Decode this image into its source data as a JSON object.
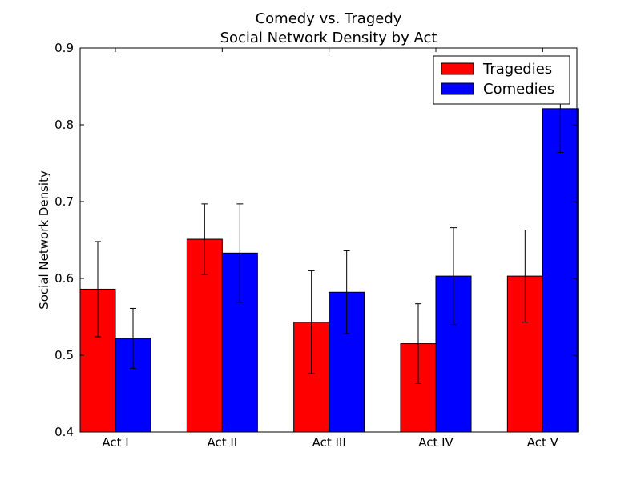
{
  "chart_data": {
    "type": "bar",
    "title": "Comedy vs. Tragedy",
    "subtitle": "Social Network Density by Act",
    "xlabel": "",
    "ylabel": "Social Network Density",
    "ylim": [
      0.4,
      0.9
    ],
    "yticks": [
      "0.4",
      "0.5",
      "0.6",
      "0.7",
      "0.8",
      "0.9"
    ],
    "categories": [
      "Act I",
      "Act II",
      "Act III",
      "Act IV",
      "Act V"
    ],
    "series": [
      {
        "name": "Tragedies",
        "color": "#ff0000",
        "values": [
          0.586,
          0.651,
          0.543,
          0.515,
          0.603
        ],
        "errors": [
          0.062,
          0.046,
          0.067,
          0.052,
          0.06
        ]
      },
      {
        "name": "Comedies",
        "color": "#0000ff",
        "values": [
          0.522,
          0.633,
          0.582,
          0.603,
          0.821
        ],
        "errors": [
          0.039,
          0.064,
          0.054,
          0.063,
          0.057
        ]
      }
    ],
    "grid": false,
    "legend": "top-right"
  }
}
